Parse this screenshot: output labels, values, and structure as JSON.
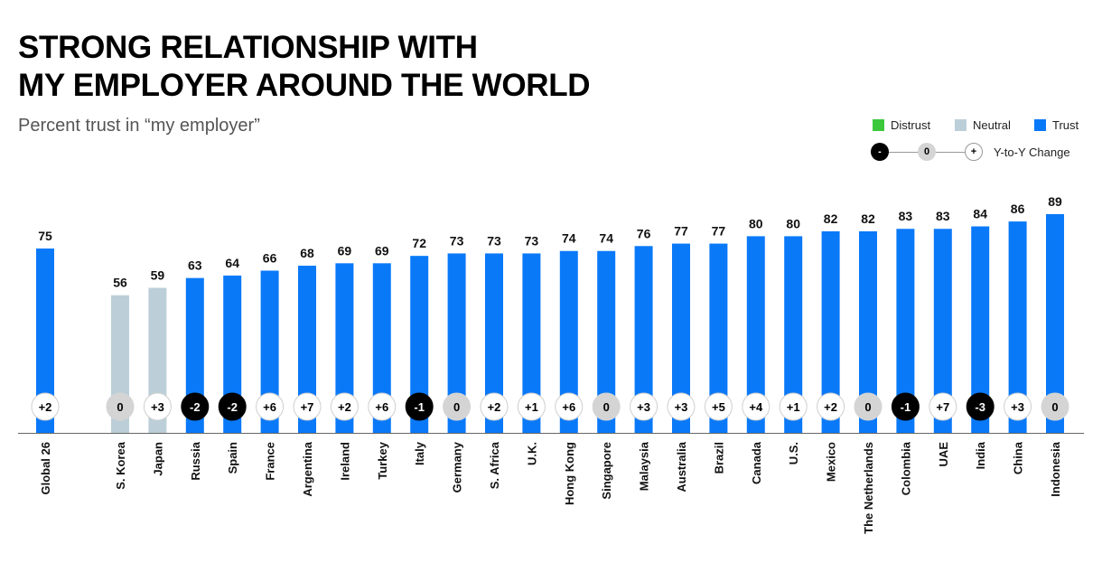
{
  "title_line1": "STRONG RELATIONSHIP WITH",
  "title_line2": "MY EMPLOYER AROUND THE WORLD",
  "subtitle": "Percent trust in “my employer”",
  "legend": [
    {
      "label": "Distrust",
      "color": "#3cc83c"
    },
    {
      "label": "Neutral",
      "color": "#bccfd9"
    },
    {
      "label": "Trust",
      "color": "#0a79f8"
    }
  ],
  "change_key": {
    "negative": "-",
    "zero": "0",
    "positive": "+",
    "label": "Y-to-Y Change"
  },
  "chart_data": {
    "type": "bar",
    "categories": [
      "Global 26",
      "S. Korea",
      "Japan",
      "Russia",
      "Spain",
      "France",
      "Argentina",
      "Ireland",
      "Turkey",
      "Italy",
      "Germany",
      "S. Africa",
      "U.K.",
      "Hong Kong",
      "Singapore",
      "Malaysia",
      "Australia",
      "Brazil",
      "Canada",
      "U.S.",
      "Mexico",
      "The Netherlands",
      "Colombia",
      "UAE",
      "India",
      "China",
      "Indonesia"
    ],
    "values": [
      75,
      56,
      59,
      63,
      64,
      66,
      68,
      69,
      69,
      72,
      73,
      73,
      73,
      74,
      74,
      76,
      77,
      77,
      80,
      80,
      82,
      82,
      83,
      83,
      84,
      86,
      89
    ],
    "category_type": [
      "Trust",
      "Neutral",
      "Neutral",
      "Trust",
      "Trust",
      "Trust",
      "Trust",
      "Trust",
      "Trust",
      "Trust",
      "Trust",
      "Trust",
      "Trust",
      "Trust",
      "Trust",
      "Trust",
      "Trust",
      "Trust",
      "Trust",
      "Trust",
      "Trust",
      "Trust",
      "Trust",
      "Trust",
      "Trust",
      "Trust",
      "Trust"
    ],
    "yoy_change": [
      "+2",
      "0",
      "+3",
      "-2",
      "-2",
      "+6",
      "+7",
      "+2",
      "+6",
      "-1",
      "0",
      "+2",
      "+1",
      "+6",
      "0",
      "+3",
      "+3",
      "+5",
      "+4",
      "+1",
      "+2",
      "0",
      "-1",
      "+7",
      "-3",
      "+3",
      "0"
    ],
    "ylim": [
      0,
      100
    ],
    "colors": {
      "Trust": "#0a79f8",
      "Neutral": "#bccfd9",
      "Distrust": "#3cc83c"
    },
    "legend_position": "top-right",
    "grid": false
  }
}
